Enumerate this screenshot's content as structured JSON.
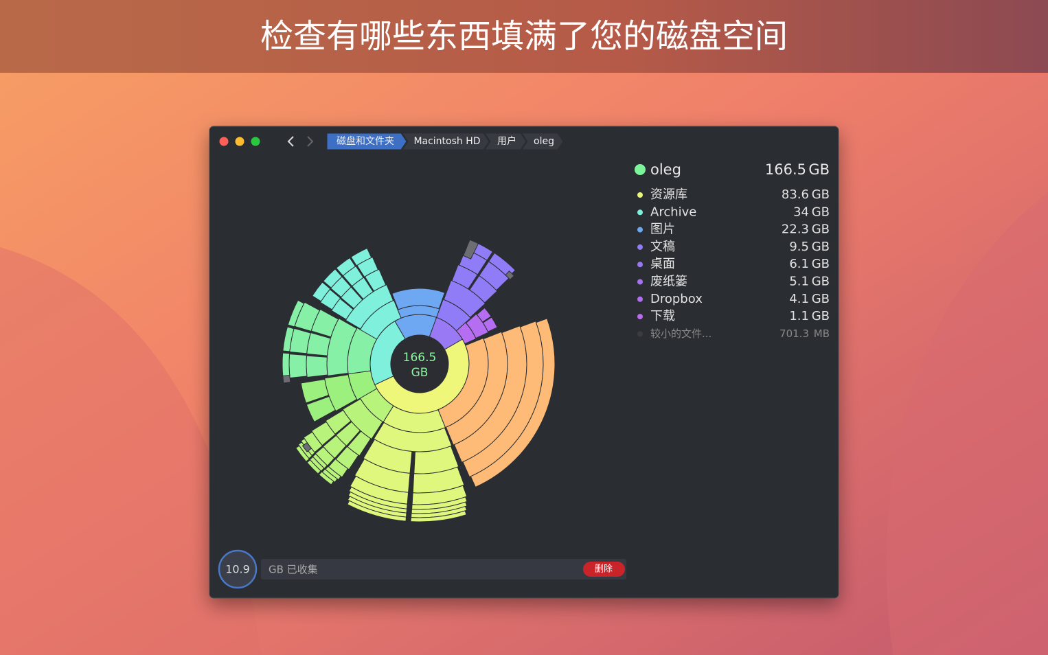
{
  "header": {
    "title": "检查有哪些东西填满了您的磁盘空间"
  },
  "window": {
    "breadcrumbs": [
      "磁盘和文件夹",
      "Macintosh HD",
      "用户",
      "oleg"
    ],
    "center_label": {
      "value": "166.5",
      "unit": "GB"
    },
    "folder": {
      "name": "oleg",
      "size": "166.5",
      "unit": "GB"
    },
    "items": [
      {
        "name": "资源库",
        "size": "83.6",
        "unit": "GB"
      },
      {
        "name": "Archive",
        "size": "34",
        "unit": "GB"
      },
      {
        "name": "图片",
        "size": "22.3",
        "unit": "GB"
      },
      {
        "name": "文稿",
        "size": "9.5",
        "unit": "GB"
      },
      {
        "name": "桌面",
        "size": "6.1",
        "unit": "GB"
      },
      {
        "name": "废纸篓",
        "size": "5.1",
        "unit": "GB"
      },
      {
        "name": "Dropbox",
        "size": "4.1",
        "unit": "GB"
      },
      {
        "name": "下载",
        "size": "1.1",
        "unit": "GB"
      },
      {
        "name": "较小的文件...",
        "size": "701.3",
        "unit": "MB"
      }
    ],
    "collected": {
      "value": "10.9",
      "label": "GB 已收集"
    },
    "delete_button": "删除"
  }
}
